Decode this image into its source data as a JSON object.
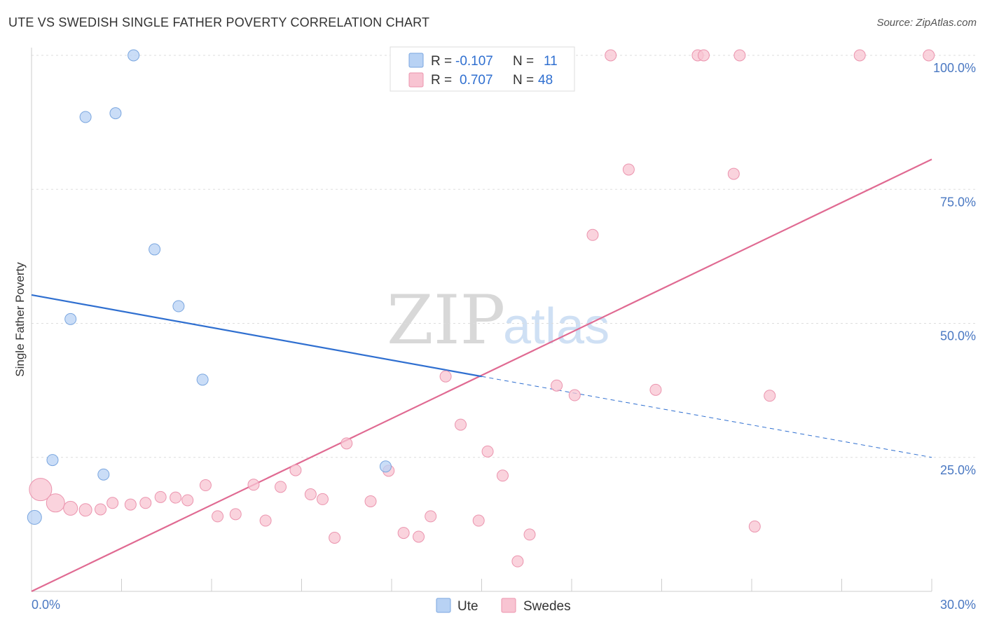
{
  "title": "UTE VS SWEDISH SINGLE FATHER POVERTY CORRELATION CHART",
  "source": "Source: ZipAtlas.com",
  "watermark": {
    "zip": "ZIP",
    "atlas": "atlas"
  },
  "colors": {
    "ute_fill": "#b8d2f4",
    "ute_stroke": "#7aa6df",
    "ute_line": "#2f6fd0",
    "swedes_fill": "#f8c4d2",
    "swedes_stroke": "#eb94ae",
    "swedes_line": "#e06a92",
    "tick_text": "#4a78c2",
    "grid": "#dddddd"
  },
  "legend": {
    "ute": {
      "r_label": "R =",
      "r_value": "-0.107",
      "n_label": "N =",
      "n_value": "11"
    },
    "swedes": {
      "r_label": "R =",
      "r_value": "0.707",
      "n_label": "N =",
      "n_value": "48"
    }
  },
  "bottom_legend": [
    "Ute",
    "Swedes"
  ],
  "chart_data": {
    "type": "scatter",
    "title": "UTE VS SWEDISH SINGLE FATHER POVERTY CORRELATION CHART",
    "xlabel": "",
    "ylabel": "Single Father Poverty",
    "xlim": [
      0,
      30
    ],
    "ylim": [
      0,
      100
    ],
    "x_tick_labels": [
      "0.0%",
      "30.0%"
    ],
    "y_ticks": [
      25,
      50,
      75,
      100
    ],
    "y_tick_labels": [
      "25.0%",
      "50.0%",
      "75.0%",
      "100.0%"
    ],
    "series": [
      {
        "name": "Ute",
        "points": [
          [
            0.1,
            13.8,
            10
          ],
          [
            0.7,
            24.5,
            8
          ],
          [
            1.3,
            50.8,
            8
          ],
          [
            1.8,
            88.5,
            8
          ],
          [
            2.4,
            21.8,
            8
          ],
          [
            2.8,
            89.2,
            8
          ],
          [
            3.4,
            100,
            8
          ],
          [
            4.1,
            63.8,
            8
          ],
          [
            4.9,
            53.2,
            8
          ],
          [
            5.7,
            39.5,
            8
          ],
          [
            11.8,
            23.3,
            8
          ]
        ],
        "trend": {
          "x0": 0,
          "y0": 55.3,
          "x1": 15,
          "y1": 40.1,
          "dash_to_x": 30,
          "dash_to_y": 25.0
        }
      },
      {
        "name": "Swedes",
        "points": [
          [
            0.3,
            19,
            16
          ],
          [
            0.8,
            16.5,
            13
          ],
          [
            1.3,
            15.5,
            10
          ],
          [
            1.8,
            15.2,
            9
          ],
          [
            2.3,
            15.3,
            8
          ],
          [
            2.7,
            16.5,
            8
          ],
          [
            3.3,
            16.2,
            8
          ],
          [
            3.8,
            16.5,
            8
          ],
          [
            4.3,
            17.6,
            8
          ],
          [
            4.8,
            17.5,
            8
          ],
          [
            5.2,
            17.0,
            8
          ],
          [
            5.8,
            19.8,
            8
          ],
          [
            6.2,
            14.0,
            8
          ],
          [
            6.8,
            14.4,
            8
          ],
          [
            7.4,
            19.9,
            8
          ],
          [
            7.8,
            13.2,
            8
          ],
          [
            8.3,
            19.5,
            8
          ],
          [
            8.8,
            22.6,
            8
          ],
          [
            9.3,
            18.1,
            8
          ],
          [
            9.7,
            17.2,
            8
          ],
          [
            10.1,
            10.0,
            8
          ],
          [
            10.5,
            27.6,
            8
          ],
          [
            11.3,
            16.8,
            8
          ],
          [
            11.9,
            22.5,
            8
          ],
          [
            12.4,
            10.9,
            8
          ],
          [
            12.9,
            10.2,
            8
          ],
          [
            13.3,
            14.0,
            8
          ],
          [
            13.8,
            40.1,
            8
          ],
          [
            14.3,
            31.1,
            8
          ],
          [
            14.9,
            13.2,
            8
          ],
          [
            15.2,
            26.1,
            8
          ],
          [
            15.7,
            21.6,
            8
          ],
          [
            16.2,
            5.6,
            8
          ],
          [
            16.6,
            10.6,
            8
          ],
          [
            17.5,
            38.4,
            8
          ],
          [
            18.1,
            36.6,
            8
          ],
          [
            18.7,
            66.5,
            8
          ],
          [
            19.3,
            100,
            8
          ],
          [
            19.9,
            78.7,
            8
          ],
          [
            20.8,
            37.6,
            8
          ],
          [
            22.2,
            100,
            8
          ],
          [
            22.4,
            100,
            8
          ],
          [
            23.4,
            77.9,
            8
          ],
          [
            23.6,
            100,
            8
          ],
          [
            24.1,
            12.1,
            8
          ],
          [
            24.6,
            36.5,
            8
          ],
          [
            27.6,
            100,
            8
          ],
          [
            29.9,
            100,
            8
          ]
        ],
        "trend": {
          "x0": 0,
          "y0": 0,
          "x1": 30,
          "y1": 80.6
        }
      }
    ]
  }
}
